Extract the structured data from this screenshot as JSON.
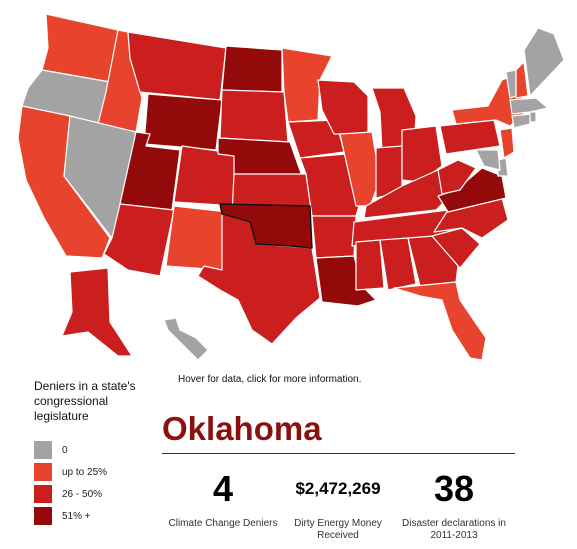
{
  "colors": {
    "zero": "#a3a3a3",
    "up_to_25": "#e8432d",
    "26_50": "#cb1e1e",
    "51_plus": "#940a0a",
    "title": "#8b1111"
  },
  "map": {
    "hint": "Hover for data, click for more information.",
    "selected_state": "OK",
    "states": {
      "WA": "up_to_25",
      "OR": "zero",
      "CA": "up_to_25",
      "ID": "up_to_25",
      "NV": "zero",
      "MT": "26_50",
      "WY": "51_plus",
      "UT": "51_plus",
      "AZ": "26_50",
      "CO": "26_50",
      "NM": "up_to_25",
      "ND": "51_plus",
      "SD": "26_50",
      "NE": "51_plus",
      "KS": "26_50",
      "OK": "51_plus",
      "TX": "26_50",
      "MN": "up_to_25",
      "IA": "26_50",
      "MO": "26_50",
      "AR": "26_50",
      "LA": "51_plus",
      "WI": "26_50",
      "IL": "up_to_25",
      "MI": "26_50",
      "IN": "26_50",
      "OH": "26_50",
      "KY": "26_50",
      "TN": "26_50",
      "MS": "26_50",
      "AL": "26_50",
      "GA": "26_50",
      "FL": "up_to_25",
      "SC": "26_50",
      "NC": "26_50",
      "VA": "51_plus",
      "WV": "26_50",
      "PA": "26_50",
      "NY": "up_to_25",
      "NJ": "up_to_25",
      "DE": "zero",
      "MD": "zero",
      "CT": "zero",
      "RI": "zero",
      "MA": "zero",
      "VT": "zero",
      "NH": "up_to_25",
      "ME": "zero",
      "AK": "26_50",
      "HI": "zero"
    }
  },
  "legend": {
    "title": "Deniers in a state's congressional legislature",
    "items": [
      {
        "key": "zero",
        "label": "0"
      },
      {
        "key": "up_to_25",
        "label": "up to 25%"
      },
      {
        "key": "26_50",
        "label": "26 - 50%"
      },
      {
        "key": "51_plus",
        "label": "51% +"
      }
    ]
  },
  "detail": {
    "state_name": "Oklahoma",
    "stats": [
      {
        "value": "4",
        "label": "Climate Change Deniers"
      },
      {
        "value": "$2,472,269",
        "label": "Dirty Energy Money Received"
      },
      {
        "value": "38",
        "label": "Disaster declarations in 2011-2013"
      }
    ]
  }
}
